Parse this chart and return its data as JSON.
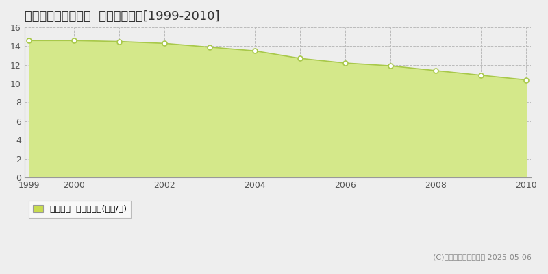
{
  "title": "いわき市平赤井比良  公示地価推移[1999-2010]",
  "years": [
    1999,
    2000,
    2001,
    2002,
    2003,
    2004,
    2005,
    2006,
    2007,
    2008,
    2009,
    2010
  ],
  "values": [
    14.6,
    14.6,
    14.5,
    14.3,
    13.9,
    13.5,
    12.7,
    12.2,
    11.9,
    11.4,
    10.9,
    10.4
  ],
  "line_color": "#a8c84a",
  "fill_color": "#d4e88a",
  "marker_fill": "#ffffff",
  "marker_edge": "#a8c84a",
  "bg_color": "#eeeeee",
  "plot_bg_color": "#eeeeee",
  "ylim": [
    0,
    16
  ],
  "yticks": [
    0,
    2,
    4,
    6,
    8,
    10,
    12,
    14,
    16
  ],
  "xticks_all": [
    1999,
    2000,
    2001,
    2002,
    2003,
    2004,
    2005,
    2006,
    2007,
    2008,
    2009,
    2010
  ],
  "xticks_labeled": [
    1999,
    2000,
    2002,
    2004,
    2006,
    2008,
    2010
  ],
  "grid_color_h": "#bbbbbb",
  "grid_color_v": "#bbbbbb",
  "legend_label": "公示地価  平均坪単価(万円/坪)",
  "legend_color": "#c8dc50",
  "copyright_text": "(C)土地価格ドットコム 2025-05-06",
  "title_fontsize": 13,
  "tick_fontsize": 9,
  "legend_fontsize": 9,
  "copyright_fontsize": 8
}
